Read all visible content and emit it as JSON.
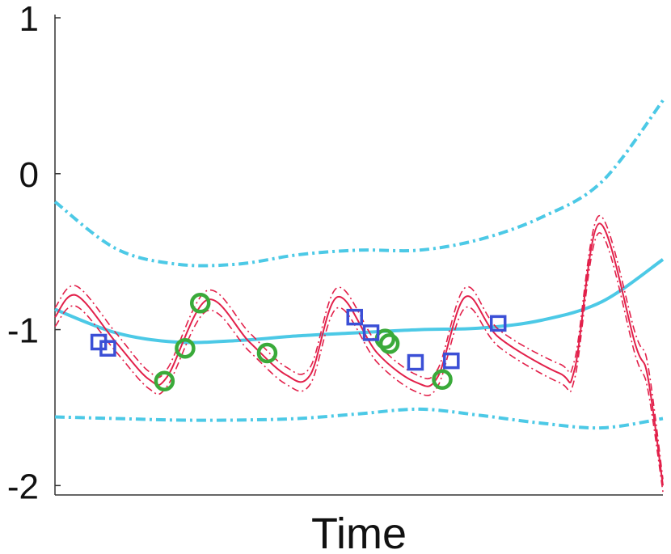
{
  "chart_data": {
    "type": "line",
    "xlabel": "Time",
    "ylabel": "",
    "title": "",
    "xlim": [
      0,
      10
    ],
    "ylim": [
      -2.05,
      1
    ],
    "yticks": [
      1,
      0,
      -1,
      -2
    ],
    "ytick_labels": [
      "1",
      "0",
      "-1",
      "-2"
    ],
    "grid": false,
    "legend": "none",
    "series": [
      {
        "role": "broad-mean",
        "style": "solid",
        "color": "#4cc9e6",
        "x": [
          0,
          1,
          2,
          3,
          4,
          5,
          6,
          7,
          8,
          9,
          10
        ],
        "y": [
          -0.87,
          -1.02,
          -1.08,
          -1.07,
          -1.04,
          -1.02,
          -1.0,
          -0.99,
          -0.94,
          -0.82,
          -0.55
        ]
      },
      {
        "role": "broad-upper",
        "style": "dashdot",
        "color": "#4cc9e6",
        "x": [
          0,
          1,
          2,
          3,
          4,
          5,
          6,
          7,
          8,
          9,
          10
        ],
        "y": [
          -0.18,
          -0.48,
          -0.58,
          -0.58,
          -0.52,
          -0.49,
          -0.49,
          -0.42,
          -0.28,
          -0.05,
          0.47
        ]
      },
      {
        "role": "broad-lower",
        "style": "dashdot",
        "color": "#4cc9e6",
        "x": [
          0,
          1,
          2,
          3,
          4,
          5,
          6,
          7,
          8,
          9,
          10
        ],
        "y": [
          -1.56,
          -1.57,
          -1.58,
          -1.58,
          -1.57,
          -1.54,
          -1.51,
          -1.55,
          -1.6,
          -1.63,
          -1.57
        ]
      },
      {
        "role": "periodic-mean",
        "style": "solid",
        "color": "#e2204a",
        "x": [
          0,
          0.35,
          1.0,
          1.55,
          1.85,
          2.5,
          3.2,
          3.8,
          4.2,
          4.65,
          5.3,
          5.95,
          6.3,
          6.75,
          7.3,
          8.3,
          8.55,
          8.95,
          9.55,
          9.75,
          10
        ],
        "y": [
          -0.92,
          -0.78,
          -1.08,
          -1.32,
          -1.3,
          -0.81,
          -1.08,
          -1.29,
          -1.29,
          -0.79,
          -1.15,
          -1.34,
          -1.3,
          -0.79,
          -1.05,
          -1.28,
          -1.25,
          -0.32,
          -1.1,
          -1.3,
          -2.0
        ]
      },
      {
        "role": "periodic-upper",
        "style": "dashdot",
        "color": "#e2204a",
        "x": [
          0,
          0.35,
          1.0,
          1.55,
          1.85,
          2.5,
          3.2,
          3.8,
          4.2,
          4.65,
          5.3,
          5.95,
          6.3,
          6.75,
          7.3,
          8.3,
          8.55,
          8.95,
          9.55,
          9.75,
          10
        ],
        "y": [
          -0.86,
          -0.72,
          -1.02,
          -1.27,
          -1.25,
          -0.75,
          -1.02,
          -1.24,
          -1.24,
          -0.73,
          -1.09,
          -1.29,
          -1.25,
          -0.73,
          -1.0,
          -1.22,
          -1.19,
          -0.27,
          -1.03,
          -1.22,
          -1.96
        ]
      },
      {
        "role": "periodic-lower",
        "style": "dashdot",
        "color": "#e2204a",
        "x": [
          0,
          0.35,
          1.0,
          1.55,
          1.85,
          2.5,
          3.2,
          3.8,
          4.2,
          4.65,
          5.3,
          5.95,
          6.3,
          6.75,
          7.3,
          8.3,
          8.55,
          8.95,
          9.55,
          9.75,
          10
        ],
        "y": [
          -0.98,
          -0.85,
          -1.14,
          -1.38,
          -1.36,
          -0.88,
          -1.14,
          -1.35,
          -1.35,
          -0.86,
          -1.21,
          -1.4,
          -1.36,
          -0.86,
          -1.11,
          -1.34,
          -1.31,
          -0.38,
          -1.17,
          -1.38,
          -2.04
        ]
      },
      {
        "role": "observations-circles",
        "style": "marker-circle",
        "color": "#3aaa3a",
        "x": [
          1.8,
          2.14,
          2.39,
          3.49,
          5.43,
          5.5,
          6.37
        ],
        "y": [
          -1.33,
          -1.12,
          -0.83,
          -1.15,
          -1.06,
          -1.09,
          -1.32
        ]
      },
      {
        "role": "observations-squares",
        "style": "marker-square",
        "color": "#3b4fd6",
        "x": [
          0.72,
          0.87,
          4.93,
          5.2,
          5.93,
          6.52,
          7.29
        ],
        "y": [
          -1.08,
          -1.12,
          -0.92,
          -1.02,
          -1.21,
          -1.2,
          -0.96
        ]
      }
    ]
  }
}
